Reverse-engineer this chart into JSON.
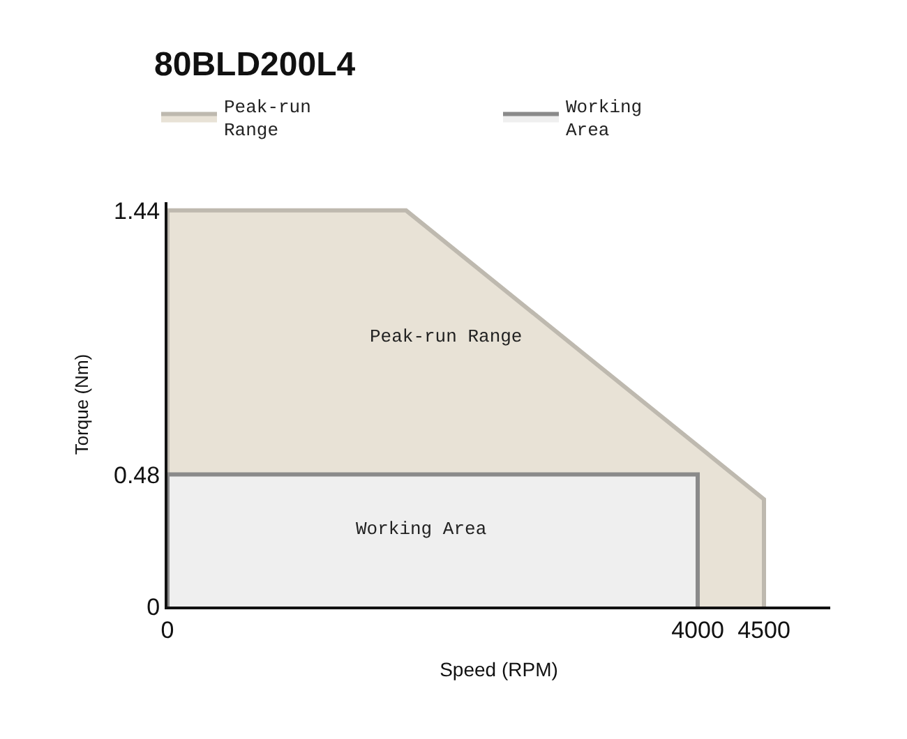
{
  "chart_data": {
    "type": "area",
    "title": "80BLD200L4",
    "xlabel": "Speed (RPM)",
    "ylabel": "Torque (Nm)",
    "series": [
      {
        "name": "Peak-run Range",
        "color": "#e8e2d6",
        "x": [
          0,
          0,
          1800,
          4500,
          4500
        ],
        "values": [
          0,
          1.44,
          1.44,
          0.39,
          0
        ]
      },
      {
        "name": "Working Area",
        "color": "#efefef",
        "x": [
          0,
          0,
          4000,
          4000
        ],
        "values": [
          0,
          0.48,
          0.48,
          0
        ]
      }
    ],
    "xlim": [
      0,
      5000
    ],
    "xticks": [
      0,
      4000,
      4500
    ],
    "ylim": [
      0,
      1.47
    ],
    "yticks": [
      0,
      0.48,
      1.44
    ],
    "annotations": [
      "Peak-run Range",
      "Working Area"
    ],
    "legend": "top left"
  }
}
